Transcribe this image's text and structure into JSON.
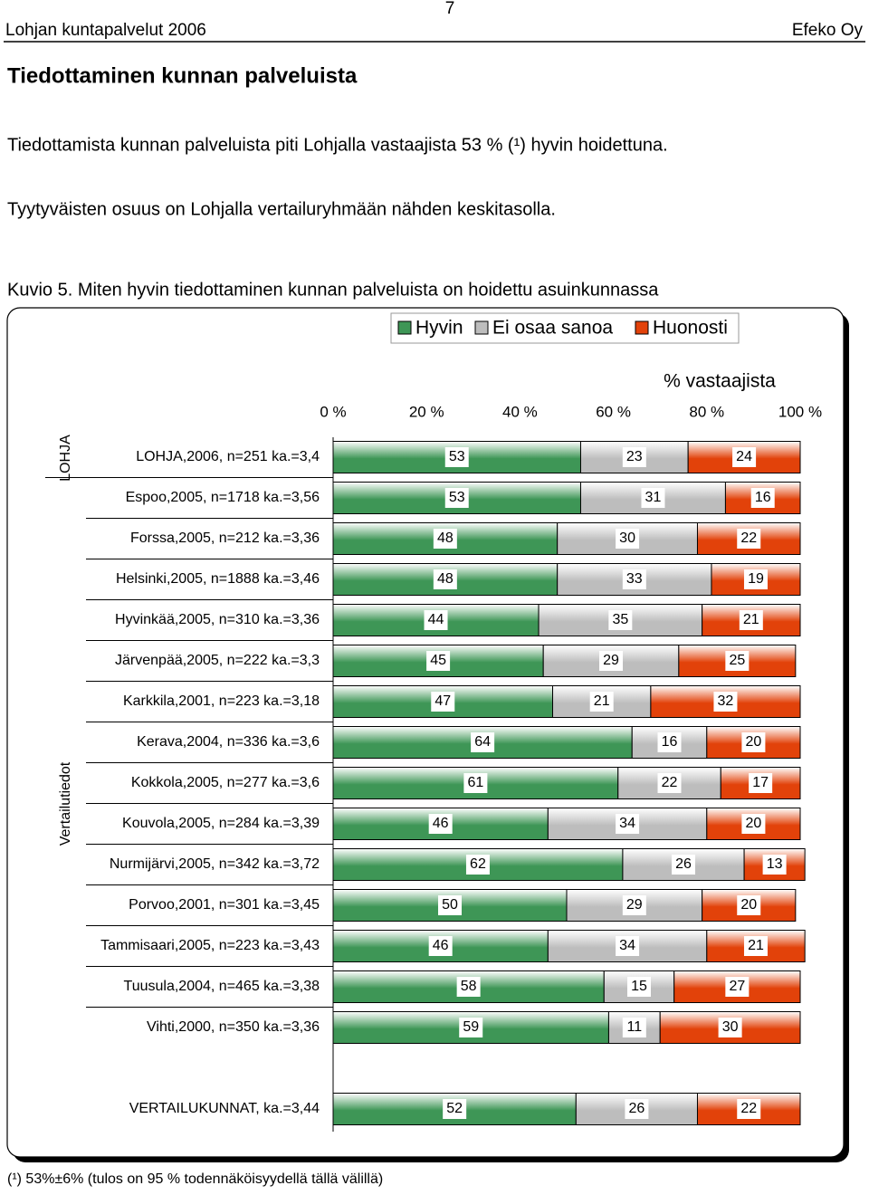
{
  "header": {
    "left": "Lohjan kuntapalvelut 2006",
    "page": "7",
    "right": "Efeko Oy"
  },
  "title": "Tiedottaminen kunnan palveluista",
  "paragraphs": [
    "Tiedottamista kunnan palveluista piti Lohjalla vastaajista 53 % (¹) hyvin hoidettuna.",
    "Tyytyväisten osuus on Lohjalla vertailuryhmään nähden keskitasolla."
  ],
  "figure_caption": "Kuvio 5. Miten hyvin tiedottaminen kunnan palveluista on hoidettu asuinkunnassa",
  "chart_data": {
    "type": "bar",
    "orientation": "horizontal",
    "stacked": true,
    "x_label": "% vastaajista",
    "group_labels": [
      "LOHJA",
      "Vertailutiedot"
    ],
    "categories": [
      "LOHJA,2006, n=251 ka.=3,4",
      "Espoo,2005, n=1718 ka.=3,56",
      "Forssa,2005, n=212 ka.=3,36",
      "Helsinki,2005, n=1888 ka.=3,46",
      "Hyvinkää,2005, n=310 ka.=3,36",
      "Järvenpää,2005, n=222 ka.=3,3",
      "Karkkila,2001, n=223 ka.=3,18",
      "Kerava,2004, n=336 ka.=3,6",
      "Kokkola,2005, n=277 ka.=3,6",
      "Kouvola,2005, n=284 ka.=3,39",
      "Nurmijärvi,2005, n=342 ka.=3,72",
      "Porvoo,2001, n=301 ka.=3,45",
      "Tammisaari,2005, n=223 ka.=3,43",
      "Tuusula,2004, n=465 ka.=3,38",
      "Vihti,2000, n=350 ka.=3,36",
      null,
      "VERTAILUKUNNAT, ka.=3,44"
    ],
    "series": [
      {
        "name": "Hyvin",
        "color": "#3e9656",
        "values": [
          53,
          53,
          48,
          48,
          44,
          45,
          47,
          64,
          61,
          46,
          62,
          50,
          46,
          58,
          59,
          null,
          52
        ]
      },
      {
        "name": "Ei osaa sanoa",
        "color": "#bdbdbd",
        "values": [
          23,
          31,
          30,
          33,
          35,
          29,
          21,
          16,
          22,
          34,
          26,
          29,
          34,
          15,
          11,
          null,
          26
        ]
      },
      {
        "name": "Huonosti",
        "color": "#e2420a",
        "values": [
          24,
          16,
          22,
          19,
          21,
          25,
          32,
          20,
          17,
          20,
          13,
          20,
          21,
          27,
          30,
          null,
          22
        ]
      }
    ],
    "xlim": [
      0,
      100
    ],
    "xticks": [
      {
        "value": 0,
        "label": "0 %"
      },
      {
        "value": 20,
        "label": "20 %"
      },
      {
        "value": 40,
        "label": "40 %"
      },
      {
        "value": 60,
        "label": "60 %"
      },
      {
        "value": 80,
        "label": "80 %"
      },
      {
        "value": 100,
        "label": "100 %"
      }
    ],
    "legend": "top"
  },
  "footnote": "(¹) 53%±6% (tulos on 95 % todennäköisyydellä tällä välillä)"
}
